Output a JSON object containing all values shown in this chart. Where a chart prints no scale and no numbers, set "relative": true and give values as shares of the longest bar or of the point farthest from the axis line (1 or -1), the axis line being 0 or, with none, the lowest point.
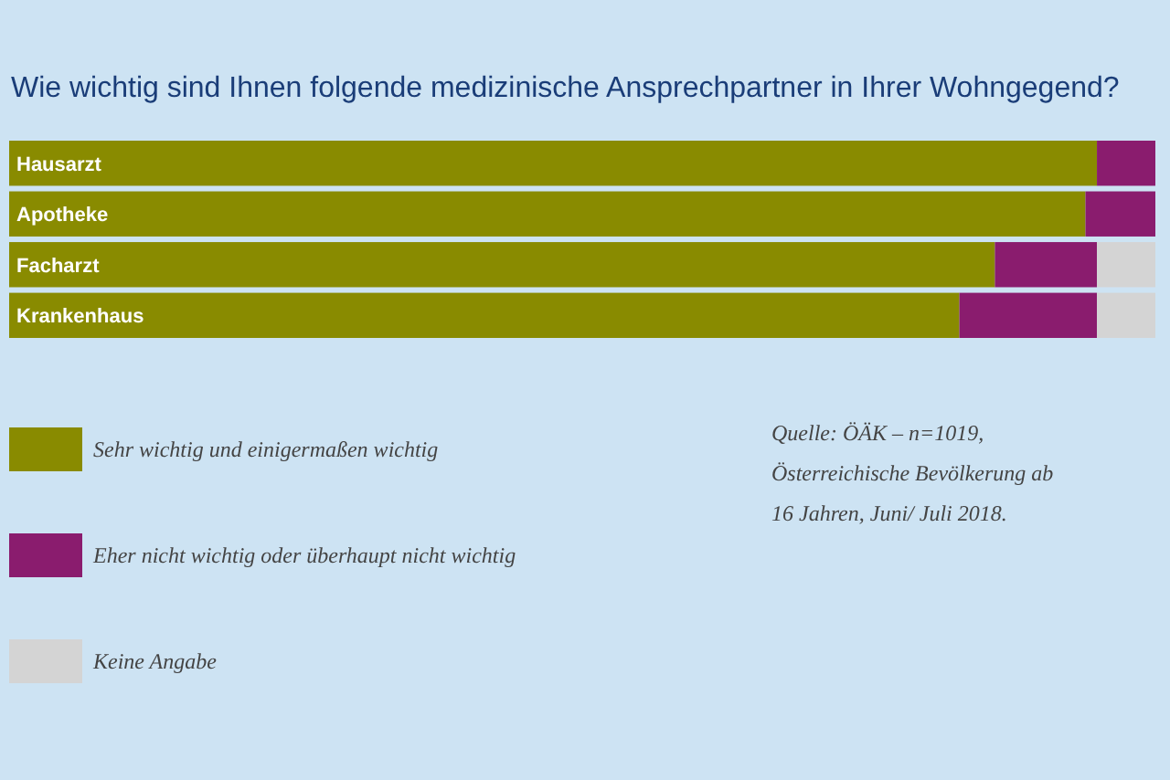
{
  "chart_data": {
    "type": "bar",
    "orientation": "horizontal",
    "stacked": true,
    "relative": true,
    "title": "Wie wichtig sind Ihnen folgende medizinische Ansprechpartner in Ihrer Wohngegend?",
    "categories": [
      "Hausarzt",
      "Apotheke",
      "Facharzt",
      "Krankenhaus"
    ],
    "series": [
      {
        "name": "Sehr wichtig und einigermaßen wichtig",
        "color": "#898b00",
        "values": [
          0.949,
          0.939,
          0.86,
          0.829
        ]
      },
      {
        "name": "Eher nicht wichtig oder überhaupt nicht wichtig",
        "color": "#8a1c6e",
        "values": [
          0.051,
          0.061,
          0.089,
          0.12
        ]
      },
      {
        "name": "Keine Angabe",
        "color": "#d4d4d4",
        "values": [
          0,
          0,
          0.051,
          0.051
        ]
      }
    ],
    "legend": "bottom left",
    "annotations": [
      "Quelle: ÖÄK – n=1019, Österreichische Bevölkerung ab 16 Jahren, Juni/ Juli 2018."
    ]
  }
}
